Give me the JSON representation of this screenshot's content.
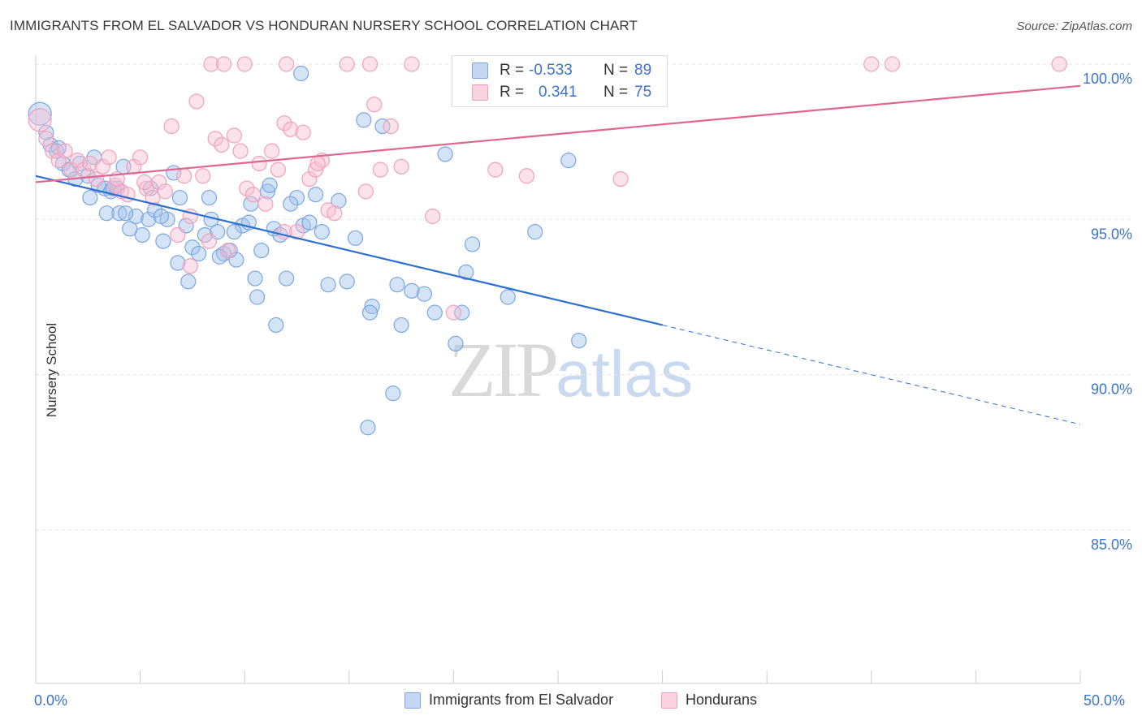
{
  "header": {
    "title": "IMMIGRANTS FROM EL SALVADOR VS HONDURAN NURSERY SCHOOL CORRELATION CHART",
    "source": "Source: ZipAtlas.com"
  },
  "watermark": {
    "zip": "ZIP",
    "atlas": "atlas"
  },
  "legend": {
    "rows": [
      {
        "r_label": "R =",
        "r_value": "-0.533",
        "n_label": "N =",
        "n_value": "89",
        "color": "#7aa7e0"
      },
      {
        "r_label": "R =",
        "r_value": "0.341",
        "n_label": "N =",
        "n_value": "75",
        "color": "#f0a0bc"
      }
    ]
  },
  "bottom_legend": {
    "items": [
      {
        "label": "Immigrants from El Salvador",
        "color": "#7aa7e0"
      },
      {
        "label": "Hondurans",
        "color": "#f0a0bc"
      }
    ]
  },
  "axes": {
    "ylabel": "Nursery School",
    "x_min_label": "0.0%",
    "x_max_label": "50.0%",
    "y_tick_labels": [
      "100.0%",
      "95.0%",
      "90.0%",
      "85.0%"
    ]
  },
  "chart_data": {
    "type": "scatter",
    "title": "IMMIGRANTS FROM EL SALVADOR VS HONDURAN NURSERY SCHOOL CORRELATION CHART",
    "xlabel": "",
    "ylabel": "Nursery School",
    "xlim": [
      0,
      50
    ],
    "ylim": [
      80.5,
      100.6
    ],
    "y_ticks": [
      100,
      95,
      90,
      85
    ],
    "grid": true,
    "legend_position": "top-center",
    "series": [
      {
        "name": "Immigrants from El Salvador",
        "color": "#7aa7e0",
        "trend": {
          "x": [
            0,
            30
          ],
          "y": [
            96.4,
            91.6
          ],
          "dashed_to": [
            50,
            88.4
          ]
        },
        "points": [
          [
            0.2,
            98.4
          ],
          [
            0.5,
            97.8
          ],
          [
            0.7,
            97.4
          ],
          [
            1.0,
            97.2
          ],
          [
            1.3,
            96.8
          ],
          [
            1.6,
            96.6
          ],
          [
            1.9,
            96.3
          ],
          [
            2.1,
            96.8
          ],
          [
            2.5,
            96.4
          ],
          [
            2.8,
            97.0
          ],
          [
            3.0,
            96.1
          ],
          [
            3.3,
            96.0
          ],
          [
            3.6,
            95.9
          ],
          [
            2.6,
            95.7
          ],
          [
            3.9,
            96.0
          ],
          [
            4.2,
            96.7
          ],
          [
            3.4,
            95.2
          ],
          [
            4.0,
            95.2
          ],
          [
            4.5,
            94.7
          ],
          [
            4.8,
            95.1
          ],
          [
            5.1,
            94.5
          ],
          [
            5.4,
            95.0
          ],
          [
            5.7,
            95.3
          ],
          [
            6.1,
            94.3
          ],
          [
            6.3,
            95.0
          ],
          [
            6.6,
            96.5
          ],
          [
            6.9,
            95.7
          ],
          [
            7.2,
            94.8
          ],
          [
            7.5,
            94.1
          ],
          [
            7.8,
            93.9
          ],
          [
            8.1,
            94.5
          ],
          [
            8.4,
            95.0
          ],
          [
            8.7,
            94.6
          ],
          [
            9.0,
            93.9
          ],
          [
            9.3,
            94.0
          ],
          [
            9.6,
            93.7
          ],
          [
            9.9,
            94.8
          ],
          [
            10.2,
            94.9
          ],
          [
            10.5,
            93.1
          ],
          [
            10.8,
            94.0
          ],
          [
            11.1,
            95.9
          ],
          [
            11.4,
            94.7
          ],
          [
            11.7,
            94.5
          ],
          [
            12.0,
            93.1
          ],
          [
            12.5,
            95.7
          ],
          [
            12.8,
            94.8
          ],
          [
            13.1,
            94.9
          ],
          [
            13.4,
            95.8
          ],
          [
            13.7,
            94.6
          ],
          [
            14.0,
            92.9
          ],
          [
            14.5,
            95.6
          ],
          [
            14.9,
            93.0
          ],
          [
            15.3,
            94.4
          ],
          [
            15.7,
            98.2
          ],
          [
            16.1,
            92.2
          ],
          [
            16.6,
            98.0
          ],
          [
            17.3,
            92.9
          ],
          [
            18.0,
            92.7
          ],
          [
            18.6,
            92.6
          ],
          [
            19.1,
            92.0
          ],
          [
            19.6,
            97.1
          ],
          [
            20.1,
            91.0
          ],
          [
            20.6,
            93.3
          ],
          [
            20.9,
            94.2
          ],
          [
            22.6,
            92.5
          ],
          [
            23.9,
            94.6
          ],
          [
            25.5,
            96.9
          ],
          [
            26.0,
            91.1
          ],
          [
            16.0,
            92.0
          ],
          [
            17.5,
            91.6
          ],
          [
            12.7,
            99.7
          ],
          [
            11.2,
            96.1
          ],
          [
            10.3,
            95.5
          ],
          [
            9.5,
            94.6
          ],
          [
            8.3,
            95.7
          ],
          [
            7.3,
            93.0
          ],
          [
            6.8,
            93.6
          ],
          [
            6.0,
            95.1
          ],
          [
            5.5,
            96.0
          ],
          [
            4.3,
            95.2
          ],
          [
            3.7,
            96.0
          ],
          [
            12.2,
            95.5
          ],
          [
            15.9,
            88.3
          ],
          [
            17.1,
            89.4
          ],
          [
            11.5,
            91.6
          ],
          [
            10.6,
            92.5
          ],
          [
            20.4,
            92.0
          ],
          [
            8.8,
            93.8
          ],
          [
            1.1,
            97.3
          ]
        ]
      },
      {
        "name": "Hondurans",
        "color": "#f0a0bc",
        "trend": {
          "x": [
            0,
            50
          ],
          "y": [
            96.2,
            99.3
          ]
        },
        "points": [
          [
            0.2,
            98.2
          ],
          [
            0.5,
            97.6
          ],
          [
            0.8,
            97.2
          ],
          [
            1.1,
            96.9
          ],
          [
            1.4,
            97.2
          ],
          [
            1.7,
            96.6
          ],
          [
            2.0,
            96.9
          ],
          [
            2.3,
            96.6
          ],
          [
            2.6,
            96.8
          ],
          [
            2.9,
            96.3
          ],
          [
            3.2,
            96.7
          ],
          [
            3.5,
            97.0
          ],
          [
            3.8,
            96.1
          ],
          [
            4.1,
            95.9
          ],
          [
            4.4,
            95.8
          ],
          [
            4.7,
            96.7
          ],
          [
            5.0,
            97.0
          ],
          [
            5.3,
            96.0
          ],
          [
            5.6,
            95.7
          ],
          [
            5.9,
            96.2
          ],
          [
            6.2,
            95.9
          ],
          [
            6.5,
            98.0
          ],
          [
            6.8,
            94.5
          ],
          [
            7.1,
            96.4
          ],
          [
            7.4,
            95.1
          ],
          [
            7.7,
            98.8
          ],
          [
            8.0,
            96.4
          ],
          [
            8.3,
            94.3
          ],
          [
            8.6,
            97.6
          ],
          [
            8.9,
            97.4
          ],
          [
            9.2,
            94.0
          ],
          [
            9.5,
            97.7
          ],
          [
            9.8,
            97.2
          ],
          [
            10.1,
            96.0
          ],
          [
            10.4,
            95.8
          ],
          [
            10.7,
            96.8
          ],
          [
            11.0,
            95.5
          ],
          [
            11.3,
            97.2
          ],
          [
            11.6,
            96.6
          ],
          [
            11.9,
            98.1
          ],
          [
            12.2,
            97.9
          ],
          [
            12.5,
            94.6
          ],
          [
            12.8,
            97.8
          ],
          [
            13.1,
            96.3
          ],
          [
            13.4,
            96.6
          ],
          [
            13.7,
            96.9
          ],
          [
            14.0,
            95.3
          ],
          [
            14.3,
            95.2
          ],
          [
            14.9,
            100.0
          ],
          [
            15.8,
            95.9
          ],
          [
            16.2,
            98.7
          ],
          [
            16.5,
            96.6
          ],
          [
            17.0,
            98.0
          ],
          [
            17.5,
            96.7
          ],
          [
            18.0,
            100.0
          ],
          [
            19.0,
            95.1
          ],
          [
            20.0,
            92.0
          ],
          [
            22.0,
            96.6
          ],
          [
            23.5,
            96.4
          ],
          [
            25.0,
            100.0
          ],
          [
            28.0,
            96.3
          ],
          [
            8.4,
            100.0
          ],
          [
            9.0,
            100.0
          ],
          [
            10.0,
            100.0
          ],
          [
            12.0,
            100.0
          ],
          [
            16.0,
            100.0
          ],
          [
            24.0,
            100.0
          ],
          [
            40.0,
            100.0
          ],
          [
            41.0,
            100.0
          ],
          [
            49.0,
            100.0
          ],
          [
            7.4,
            93.5
          ],
          [
            11.9,
            94.6
          ],
          [
            5.2,
            96.2
          ],
          [
            3.9,
            96.3
          ],
          [
            13.5,
            96.8
          ]
        ]
      }
    ]
  }
}
